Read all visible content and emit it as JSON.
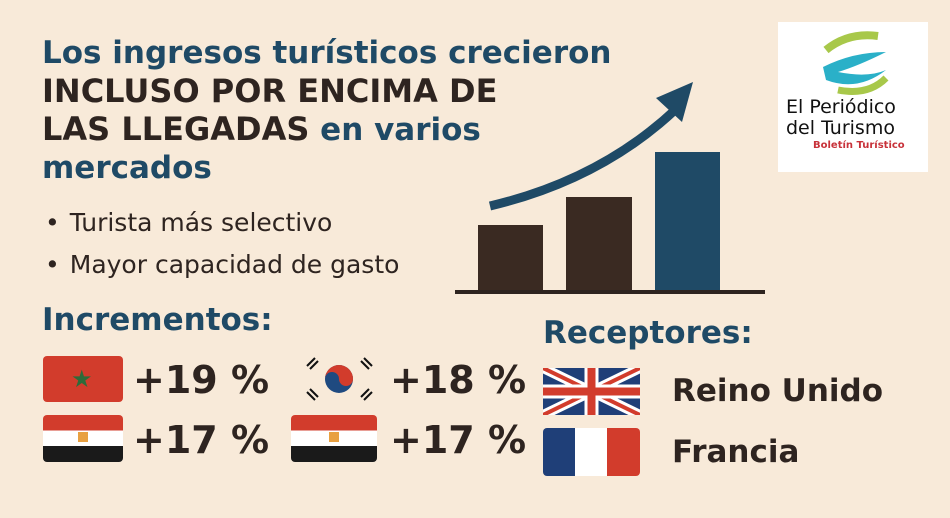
{
  "title": {
    "line1": "Los ingresos turísticos crecieron",
    "line2": "INCLUSO POR ENCIMA DE",
    "line3_bold": "LAS LLEGADAS",
    "line3_rest": " en varios",
    "line4": "mercados"
  },
  "bullets": [
    "Turista más selectivo",
    "Mayor capacidad de gasto"
  ],
  "increments": {
    "heading": "Incrementos:",
    "items": [
      {
        "flag": "morocco-flag",
        "value": "+19 %"
      },
      {
        "flag": "south-korea-flag",
        "value": "+18 %"
      },
      {
        "flag": "egypt-flag",
        "value": "+17 %"
      },
      {
        "flag": "egypt-flag",
        "value": "+17 %"
      }
    ]
  },
  "receptors": {
    "heading": "Receptores:",
    "items": [
      {
        "flag": "uk-flag",
        "name": "Reino Unido"
      },
      {
        "flag": "france-flag",
        "name": "Francia"
      }
    ]
  },
  "logo": {
    "line1": "El Periódico",
    "line2": "del Turismo",
    "tagline": "Boletín Turístico"
  },
  "colors": {
    "background": "#f8ead9",
    "blue": "#1f4a66",
    "dark": "#2e2420",
    "red": "#d23c2c"
  }
}
